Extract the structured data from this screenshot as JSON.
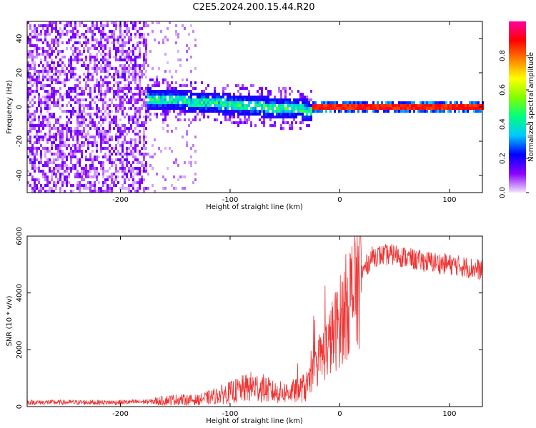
{
  "title": "C2E5.2024.200.15.44.R20",
  "chart_data": [
    {
      "type": "heatmap",
      "xlabel": "Height of straight line (km)",
      "ylabel": "Frequency (Hz)",
      "xlim": [
        -285,
        130
      ],
      "ylim": [
        -50,
        50
      ],
      "x_ticks": [
        -200,
        -100,
        0,
        100
      ],
      "x_tick_labels": [
        "-200",
        "-100",
        "0",
        "100"
      ],
      "y_ticks": [
        -40,
        -20,
        0,
        20,
        40
      ],
      "y_tick_labels": [
        "-40",
        "-20",
        "0",
        "20",
        "40"
      ],
      "grid": false,
      "colorbar": {
        "label": "Normalized spectral amplitude",
        "range": [
          0,
          1
        ],
        "ticks": [
          0,
          0.2,
          0.4,
          0.6,
          0.8
        ],
        "tick_labels": [
          "0.0",
          "0.2",
          "0.4",
          "0.6",
          "0.8"
        ],
        "colormap": [
          "#f2e6fa",
          "#8a00ff",
          "#0000ff",
          "#00c8ff",
          "#00ff80",
          "#80ff00",
          "#ffff00",
          "#ff8000",
          "#ff0000",
          "#ff00a0"
        ]
      },
      "regions": [
        {
          "x_range": [
            -285,
            -175
          ],
          "band": [
            -50,
            50
          ],
          "amplitude": 0.05
        },
        {
          "x_range": [
            -175,
            -25
          ],
          "band": [
            -8,
            10
          ],
          "amplitude": 0.3
        },
        {
          "x_range": [
            -25,
            130
          ],
          "band": [
            -2,
            3
          ],
          "amplitude": 0.9
        }
      ]
    },
    {
      "type": "line",
      "xlabel": "Height of straight line (km)",
      "ylabel": "SNR (10 * v/v)",
      "xlim": [
        -285,
        130
      ],
      "ylim": [
        0,
        6000
      ],
      "x_ticks": [
        -200,
        -100,
        0,
        100
      ],
      "x_tick_labels": [
        "-200",
        "-100",
        "0",
        "100"
      ],
      "y_ticks": [
        0,
        2000,
        4000,
        6000
      ],
      "y_tick_labels": [
        "0",
        "2000",
        "4000",
        "6000"
      ],
      "grid": false,
      "series": [
        {
          "color": "#ee3333",
          "x": [
            -285,
            -250,
            -200,
            -170,
            -150,
            -130,
            -110,
            -90,
            -80,
            -70,
            -60,
            -50,
            -40,
            -30,
            -20,
            -10,
            0,
            10,
            20,
            30,
            50,
            70,
            90,
            110,
            130
          ],
          "y": [
            150,
            150,
            150,
            180,
            250,
            230,
            400,
            600,
            700,
            650,
            500,
            500,
            550,
            700,
            1500,
            2200,
            3000,
            3900,
            4700,
            5300,
            5350,
            5150,
            5050,
            4950,
            4800
          ]
        }
      ]
    }
  ]
}
